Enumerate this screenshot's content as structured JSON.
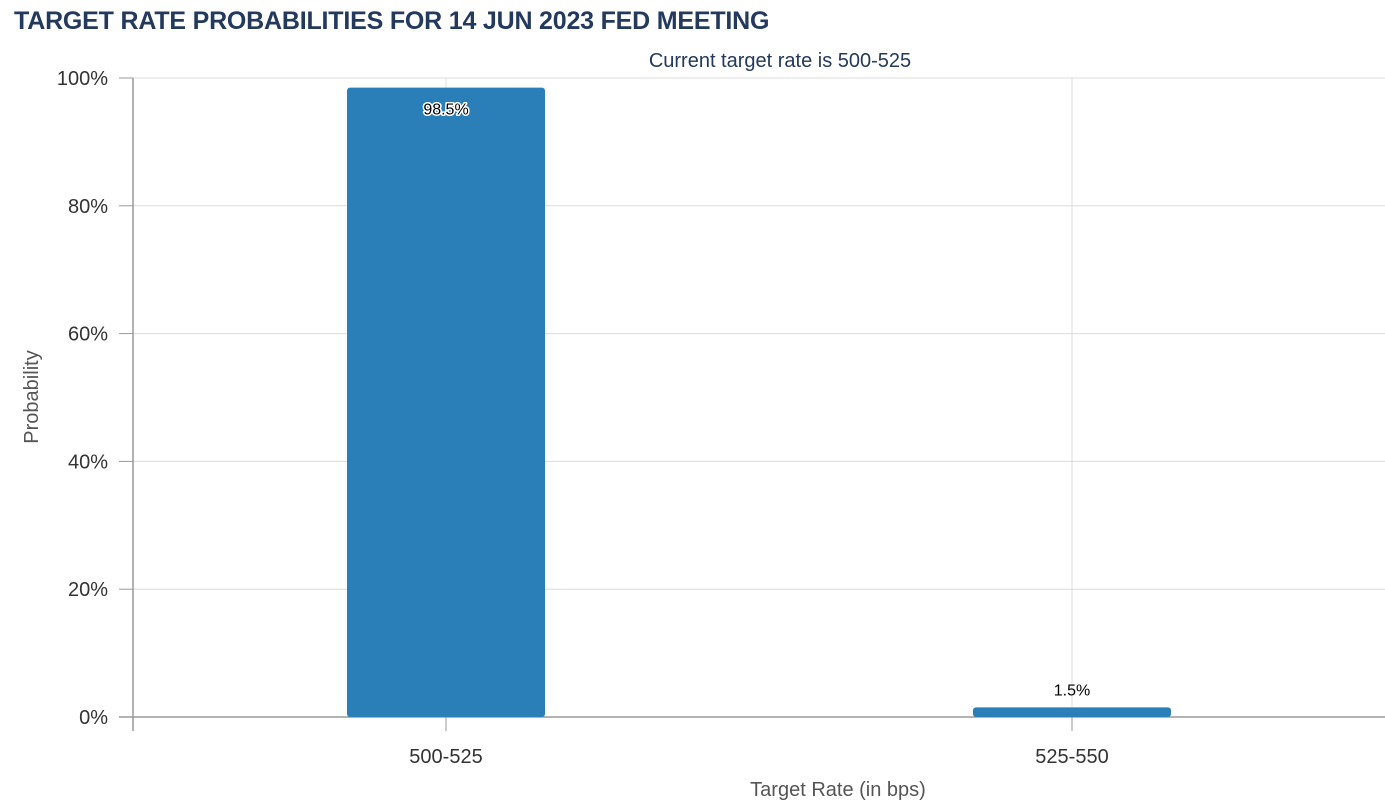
{
  "chart_data": {
    "type": "bar",
    "title": "TARGET RATE PROBABILITIES FOR 14 JUN 2023 FED MEETING",
    "subtitle": "Current target rate is 500-525",
    "xlabel": "Target Rate (in bps)",
    "ylabel": "Probability",
    "categories": [
      "500-525",
      "525-550"
    ],
    "values": [
      98.5,
      1.5
    ],
    "data_labels": [
      "98.5%",
      "1.5%"
    ],
    "ylim": [
      0,
      100
    ],
    "yticks": [
      0,
      20,
      40,
      60,
      80,
      100
    ],
    "ytick_labels": [
      "0%",
      "20%",
      "40%",
      "60%",
      "80%",
      "100%"
    ],
    "grid": true,
    "legend": "none",
    "bar_color": "#2a7fb8",
    "title_color": "#23395d"
  }
}
